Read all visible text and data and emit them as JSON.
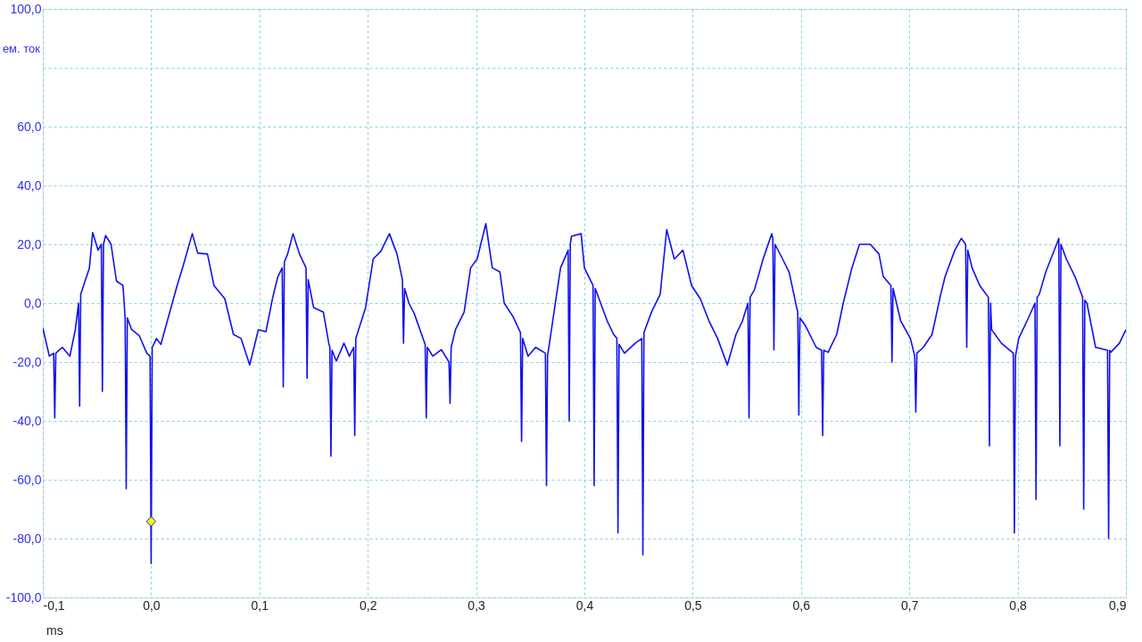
{
  "chart_data": {
    "type": "line",
    "xlabel": "ms",
    "ylabel": "ем. ток",
    "xlim": [
      -0.1,
      0.9
    ],
    "ylim": [
      -100,
      100
    ],
    "xticks": [
      {
        "value": -0.1,
        "label": "-0,1"
      },
      {
        "value": 0.0,
        "label": "0,0"
      },
      {
        "value": 0.1,
        "label": "0,1"
      },
      {
        "value": 0.2,
        "label": "0,2"
      },
      {
        "value": 0.3,
        "label": "0,3"
      },
      {
        "value": 0.4,
        "label": "0,4"
      },
      {
        "value": 0.5,
        "label": "0,5"
      },
      {
        "value": 0.6,
        "label": "0,6"
      },
      {
        "value": 0.7,
        "label": "0,7"
      },
      {
        "value": 0.8,
        "label": "0,8"
      },
      {
        "value": 0.9,
        "label": "0,9"
      }
    ],
    "yticks": [
      {
        "value": -100,
        "label": "-100,0"
      },
      {
        "value": -80,
        "label": "-80,0"
      },
      {
        "value": -60,
        "label": "-60,0"
      },
      {
        "value": -40,
        "label": "-40,0"
      },
      {
        "value": -20,
        "label": "-20,0"
      },
      {
        "value": 0,
        "label": "0,0"
      },
      {
        "value": 20,
        "label": "20,0"
      },
      {
        "value": 40,
        "label": "40,0"
      },
      {
        "value": 60,
        "label": "60,0"
      },
      {
        "value": 80,
        "label": null
      },
      {
        "value": 100,
        "label": "100,0"
      }
    ],
    "grid": true,
    "line_style": "solid",
    "series": [
      {
        "color": "#1010f0",
        "x": [
          -0.1,
          -0.094,
          -0.09,
          -0.089,
          -0.088,
          -0.082,
          -0.075,
          -0.07,
          -0.067,
          -0.066,
          -0.065,
          -0.057,
          -0.054,
          -0.049,
          -0.046,
          -0.045,
          -0.044,
          -0.042,
          -0.037,
          -0.032,
          -0.026,
          -0.024,
          -0.023,
          -0.022,
          -0.018,
          -0.011,
          -0.004,
          -0.001,
          0.0,
          0.001,
          0.005,
          0.009,
          0.015,
          0.024,
          0.029,
          0.038,
          0.043,
          0.052,
          0.058,
          0.068,
          0.076,
          0.083,
          0.091,
          0.099,
          0.106,
          0.112,
          0.117,
          0.121,
          0.122,
          0.123,
          0.126,
          0.131,
          0.137,
          0.143,
          0.144,
          0.145,
          0.15,
          0.159,
          0.164,
          0.165,
          0.166,
          0.167,
          0.171,
          0.178,
          0.183,
          0.187,
          0.188,
          0.189,
          0.192,
          0.198,
          0.205,
          0.212,
          0.22,
          0.227,
          0.232,
          0.233,
          0.234,
          0.238,
          0.243,
          0.251,
          0.253,
          0.254,
          0.255,
          0.26,
          0.268,
          0.275,
          0.276,
          0.277,
          0.281,
          0.289,
          0.295,
          0.301,
          0.309,
          0.315,
          0.322,
          0.326,
          0.334,
          0.341,
          0.342,
          0.343,
          0.348,
          0.355,
          0.364,
          0.365,
          0.366,
          0.372,
          0.378,
          0.385,
          0.386,
          0.387,
          0.388,
          0.397,
          0.4,
          0.408,
          0.409,
          0.41,
          0.421,
          0.427,
          0.43,
          0.431,
          0.432,
          0.437,
          0.447,
          0.453,
          0.454,
          0.455,
          0.462,
          0.47,
          0.476,
          0.483,
          0.491,
          0.499,
          0.507,
          0.515,
          0.523,
          0.532,
          0.54,
          0.546,
          0.551,
          0.552,
          0.553,
          0.557,
          0.565,
          0.573,
          0.574,
          0.575,
          0.576,
          0.583,
          0.589,
          0.596,
          0.597,
          0.598,
          0.599,
          0.604,
          0.614,
          0.619,
          0.62,
          0.621,
          0.625,
          0.633,
          0.639,
          0.647,
          0.654,
          0.664,
          0.672,
          0.676,
          0.683,
          0.684,
          0.685,
          0.692,
          0.701,
          0.705,
          0.706,
          0.707,
          0.713,
          0.721,
          0.729,
          0.733,
          0.742,
          0.748,
          0.752,
          0.753,
          0.754,
          0.758,
          0.765,
          0.773,
          0.774,
          0.775,
          0.776,
          0.785,
          0.796,
          0.797,
          0.798,
          0.801,
          0.81,
          0.816,
          0.817,
          0.818,
          0.82,
          0.826,
          0.837,
          0.838,
          0.839,
          0.84,
          0.845,
          0.853,
          0.86,
          0.861,
          0.862,
          0.864,
          0.872,
          0.883,
          0.884,
          0.885,
          0.886,
          0.894,
          0.9
        ],
        "values": [
          -8.5,
          -18,
          -17,
          -39,
          -17,
          -15,
          -18,
          -9,
          0,
          -35,
          3,
          12,
          24,
          18,
          20,
          -30,
          20,
          23,
          20,
          7.5,
          6,
          -5,
          -63,
          -5,
          -9,
          -11,
          -17,
          -18,
          -88.5,
          -15,
          -12,
          -14,
          -6,
          6,
          12,
          23.6,
          17,
          16.7,
          6,
          1.5,
          -10.6,
          -12,
          -21,
          -9,
          -9.7,
          1.5,
          9,
          12,
          -28.5,
          14,
          16.7,
          23.6,
          16.7,
          12,
          -25.5,
          8,
          -1.5,
          -3,
          -13.6,
          -15,
          -52,
          -16,
          -19.7,
          -13.6,
          -18,
          -15,
          -45,
          -12,
          -8.5,
          -1.5,
          15,
          17.6,
          23.6,
          16.7,
          8,
          -13.6,
          5,
          0,
          -3.6,
          -12,
          -14,
          -39,
          -15,
          -18,
          -15.8,
          -20,
          -34,
          -15,
          -9,
          -3,
          12,
          15,
          27,
          12,
          10.6,
          0,
          -4.5,
          -10,
          -47,
          -12,
          -18,
          -15,
          -17,
          -62,
          -18,
          -3,
          12,
          18,
          -40,
          20,
          22.7,
          23.6,
          12,
          6,
          -62,
          5,
          -6,
          -10.6,
          -12,
          -78,
          -14,
          -17,
          -13.6,
          -12,
          -85.5,
          -10,
          -3,
          3,
          25,
          15,
          18,
          6,
          1.5,
          -6,
          -12,
          -21,
          -10.6,
          -6,
          0,
          -39,
          2,
          4.5,
          15,
          23.6,
          22,
          -15.8,
          20,
          15,
          10.6,
          -1.5,
          -3,
          -38,
          -5,
          -7.6,
          -15,
          -16,
          -45,
          -16,
          -16.7,
          -10.6,
          0,
          12,
          20,
          20,
          16.7,
          9,
          6,
          -20,
          5,
          -6,
          -12,
          -18,
          -37,
          -17,
          -15,
          -10.6,
          3,
          9,
          18,
          22,
          20,
          -15,
          18,
          12,
          6,
          2,
          -48.5,
          0,
          -9,
          -13.6,
          -17,
          -78,
          -18,
          -12,
          -5,
          0,
          -66.7,
          2,
          3,
          10.6,
          21,
          22,
          -48.5,
          20,
          15,
          9,
          2,
          -70,
          1,
          0,
          -15,
          -16,
          -80,
          -16,
          -16.7,
          -13.6,
          -9
        ]
      },
      {
        "type": "scatter",
        "color": "#ffff00",
        "marker": "diamond",
        "x": [
          0.0
        ],
        "values": [
          -74.2
        ]
      }
    ]
  }
}
